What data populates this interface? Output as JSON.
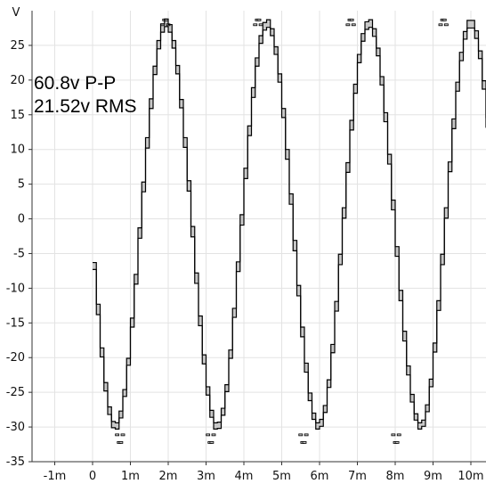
{
  "readout": {
    "peak_to_peak": "60.8v P-P",
    "rms": "21.52v RMS"
  },
  "colors": {
    "trace": "#000000",
    "envelope_fill": "#c8c8c8",
    "grid": "#e3e3e3",
    "axis": "#333333",
    "text": "#111111"
  },
  "chart_data": {
    "type": "line",
    "title": "",
    "xlabel": "",
    "ylabel": "V",
    "xlim": [
      -1.6,
      10.4
    ],
    "ylim": [
      -35,
      30
    ],
    "x_ticks": [
      -1,
      0,
      1,
      2,
      3,
      4,
      5,
      6,
      7,
      8,
      9,
      10
    ],
    "x_tick_labels": [
      "-1m",
      "0",
      "1m",
      "2m",
      "3m",
      "4m",
      "5m",
      "6m",
      "7m",
      "8m",
      "9m",
      "10m"
    ],
    "y_ticks": [
      -35,
      -30,
      -25,
      -20,
      -15,
      -10,
      -5,
      0,
      5,
      10,
      15,
      20,
      25
    ],
    "y_tick_labels": [
      "-35",
      "-30",
      "-25",
      "-20",
      "-15",
      "-10",
      "-5",
      "0",
      "5",
      "10",
      "15",
      "20",
      "25"
    ],
    "grid": true,
    "legend": "none",
    "series": [
      {
        "x": [
          0.0,
          0.1,
          0.2,
          0.3,
          0.4,
          0.5,
          0.6,
          0.7,
          0.8,
          0.9,
          1.0,
          1.1,
          1.2,
          1.3,
          1.4,
          1.5,
          1.6,
          1.7,
          1.8,
          1.9,
          2.0,
          2.1,
          2.2,
          2.3,
          2.4,
          2.5,
          2.6,
          2.7,
          2.8,
          2.9,
          3.0,
          3.1,
          3.2,
          3.3,
          3.4,
          3.5,
          3.6,
          3.7,
          3.8,
          3.9,
          4.0,
          4.1,
          4.2,
          4.3,
          4.4,
          4.5,
          4.6,
          4.7,
          4.8,
          4.9,
          5.0,
          5.1,
          5.2,
          5.3,
          5.4,
          5.5,
          5.6,
          5.7,
          5.8,
          5.9,
          6.0,
          6.1,
          6.2,
          6.3,
          6.4,
          6.5,
          6.6,
          6.7,
          6.8,
          6.9,
          7.0,
          7.1,
          7.2,
          7.3,
          7.4,
          7.5,
          7.6,
          7.7,
          7.8,
          7.9,
          8.0,
          8.1,
          8.2,
          8.3,
          8.4,
          8.5,
          8.6,
          8.7,
          8.8,
          8.9,
          9.0,
          9.1,
          9.2,
          9.3,
          9.4,
          9.5,
          9.6,
          9.7,
          9.8,
          9.9,
          10.0,
          10.1,
          10.2,
          10.3,
          10.4
        ],
        "min": [
          -7.3,
          -13.8,
          -19.9,
          -24.8,
          -28.2,
          -30.1,
          -30.3,
          -28.7,
          -25.6,
          -21.1,
          -15.6,
          -9.4,
          -2.8,
          3.9,
          10.2,
          15.9,
          20.8,
          24.5,
          26.9,
          27.7,
          26.9,
          24.6,
          20.9,
          16.0,
          10.3,
          4.0,
          -2.6,
          -9.3,
          -15.4,
          -20.9,
          -25.4,
          -28.6,
          -30.3,
          -30.2,
          -28.3,
          -24.9,
          -20.1,
          -14.2,
          -7.6,
          -0.9,
          5.8,
          12.0,
          17.5,
          22.0,
          25.3,
          27.2,
          27.6,
          26.4,
          23.7,
          19.7,
          14.6,
          8.6,
          2.1,
          -4.6,
          -11.1,
          -17.0,
          -22.1,
          -26.2,
          -28.9,
          -30.3,
          -29.9,
          -27.9,
          -24.3,
          -19.3,
          -13.3,
          -6.6,
          0.1,
          6.7,
          12.8,
          18.1,
          22.5,
          25.6,
          27.3,
          27.6,
          26.3,
          23.5,
          19.3,
          14.0,
          7.9,
          1.3,
          -5.4,
          -11.8,
          -17.6,
          -22.5,
          -26.4,
          -29.0,
          -30.3,
          -29.9,
          -27.8,
          -24.2,
          -19.2,
          -13.2,
          -6.6,
          0.1,
          6.8,
          13.0,
          18.4,
          22.8,
          25.9,
          27.5,
          27.5,
          26.0,
          23.1,
          18.7,
          13.2
        ],
        "max": [
          -6.3,
          -12.3,
          -18.6,
          -23.6,
          -27.1,
          -29.2,
          -29.4,
          -27.7,
          -24.6,
          -20.1,
          -14.3,
          -8.0,
          -1.3,
          5.3,
          11.7,
          17.3,
          22.0,
          25.7,
          28.1,
          28.8,
          28.0,
          25.7,
          22.1,
          17.2,
          11.7,
          5.5,
          -1.1,
          -7.8,
          -14.0,
          -19.6,
          -24.2,
          -27.6,
          -29.4,
          -29.3,
          -27.3,
          -23.9,
          -18.9,
          -12.9,
          -6.2,
          0.6,
          7.3,
          13.4,
          18.9,
          23.2,
          26.4,
          28.3,
          28.7,
          27.4,
          24.8,
          20.9,
          15.9,
          10.0,
          3.6,
          -3.1,
          -9.6,
          -15.6,
          -20.8,
          -25.1,
          -28.0,
          -29.4,
          -28.9,
          -26.9,
          -23.2,
          -18.1,
          -11.9,
          -5.1,
          1.6,
          8.1,
          14.2,
          19.4,
          23.7,
          26.7,
          28.4,
          28.7,
          27.4,
          24.6,
          20.5,
          15.3,
          9.3,
          2.7,
          -4.0,
          -10.3,
          -16.2,
          -21.2,
          -25.3,
          -28.1,
          -29.4,
          -29.0,
          -26.8,
          -23.1,
          -17.9,
          -11.8,
          -5.1,
          1.6,
          8.2,
          14.4,
          19.7,
          24.0,
          27.0,
          28.6,
          28.6,
          27.1,
          24.2,
          19.9,
          14.6
        ],
        "trough": [
          [
            0.65,
            -31.0
          ],
          [
            0.7,
            -32.1
          ],
          [
            0.75,
            -32.1
          ],
          [
            0.8,
            -31.0
          ],
          [
            3.05,
            -31.0
          ],
          [
            3.1,
            -32.1
          ],
          [
            3.15,
            -32.1
          ],
          [
            3.2,
            -31.0
          ],
          [
            5.5,
            -31.0
          ],
          [
            5.55,
            -32.1
          ],
          [
            5.6,
            -32.1
          ],
          [
            5.65,
            -31.0
          ],
          [
            7.95,
            -31.0
          ],
          [
            8.0,
            -32.1
          ],
          [
            8.05,
            -32.1
          ],
          [
            8.1,
            -31.0
          ]
        ],
        "peak": [
          [
            1.85,
            28.1
          ],
          [
            1.9,
            28.8
          ],
          [
            1.95,
            28.8
          ],
          [
            2.0,
            28.1
          ],
          [
            4.3,
            28.1
          ],
          [
            4.35,
            28.8
          ],
          [
            4.4,
            28.8
          ],
          [
            4.45,
            28.1
          ],
          [
            6.75,
            28.1
          ],
          [
            6.8,
            28.8
          ],
          [
            6.85,
            28.8
          ],
          [
            6.9,
            28.1
          ],
          [
            9.2,
            28.1
          ],
          [
            9.25,
            28.8
          ],
          [
            9.3,
            28.8
          ],
          [
            9.35,
            28.1
          ]
        ]
      }
    ]
  }
}
